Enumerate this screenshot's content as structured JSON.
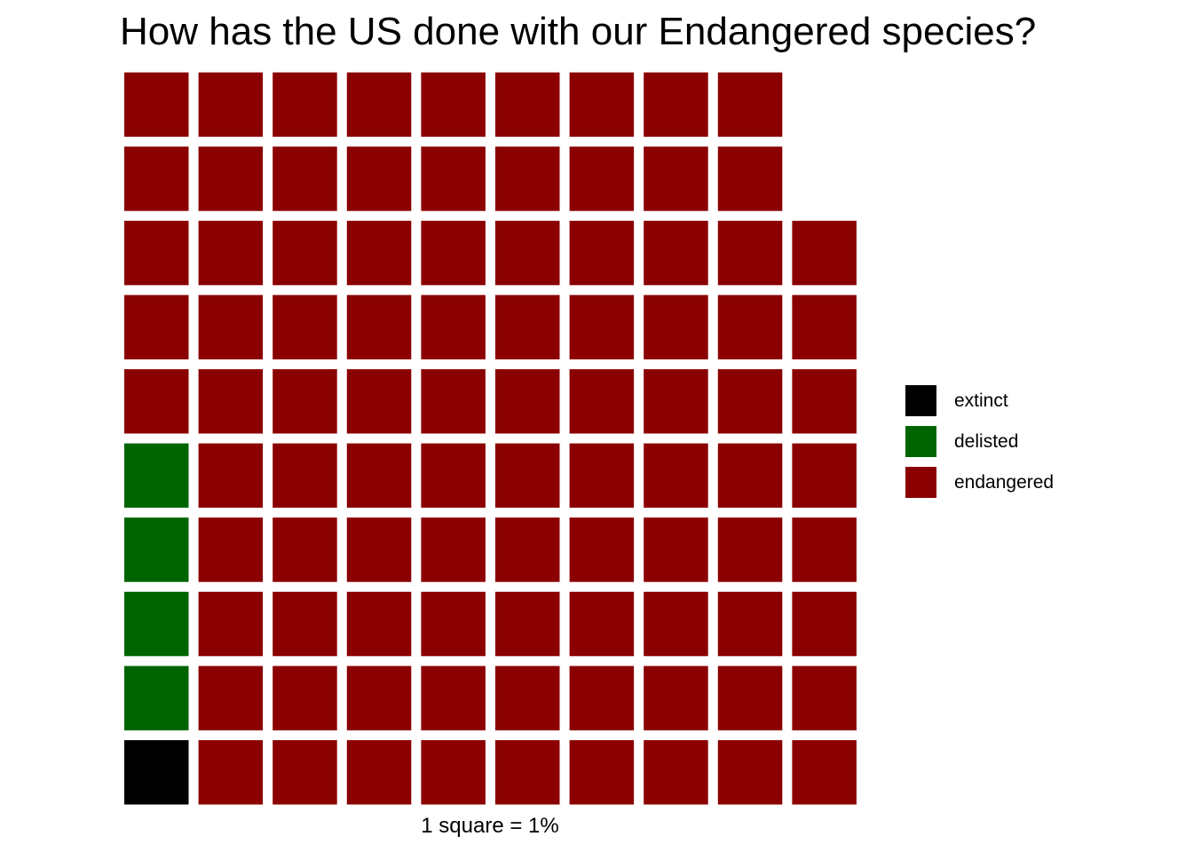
{
  "chart_data": {
    "type": "waffle",
    "title": "How has the US done with our Endangered species?",
    "caption": "1 square = 1%",
    "rows": 10,
    "categories": [
      "extinct",
      "delisted",
      "endangered"
    ],
    "values": [
      1,
      4,
      93
    ],
    "colors": [
      "#000000",
      "#006400",
      "#8b0000"
    ],
    "legend_position": "right"
  }
}
